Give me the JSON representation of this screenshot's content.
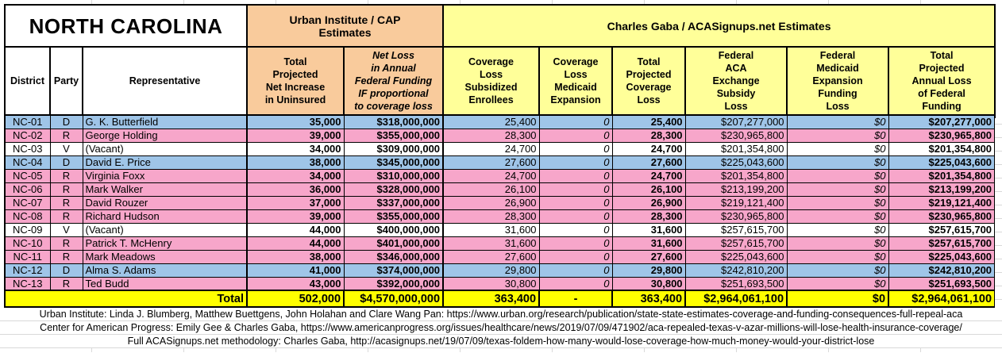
{
  "title": "NORTH CAROLINA",
  "groups": {
    "urban": "Urban Institute / CAP\nEstimates",
    "gaba": "Charles Gaba / ACASignups.net Estimates"
  },
  "columns": [
    "District",
    "Party",
    "Representative",
    "Total\nProjected\nNet Increase\nin Uninsured",
    "Net Loss\nin Annual\nFederal Funding\nIF proportional\nto coverage loss",
    "Coverage\nLoss\nSubsidized\nEnrollees",
    "Coverage\nLoss\nMedicaid\nExpansion",
    "Total\nProjected\nCoverage\nLoss",
    "Federal\nACA\nExchange\nSubsidy\nLoss",
    "Federal\nMedicaid\nExpansion\nFunding\nLoss",
    "Total\nProjected\nAnnual Loss\nof Federal\nFunding"
  ],
  "party_colors": {
    "D": "#9fc5e8",
    "R": "#f7a6ca",
    "V": "#ffffff"
  },
  "section_colors": {
    "urban": "#f9cb9c",
    "gaba": "#ffff99",
    "total_row": "#ffff00"
  },
  "rows": [
    {
      "district": "NC-01",
      "party": "D",
      "representative": "G. K. Butterfield",
      "net_increase_uninsured": "35,000",
      "net_loss_federal_funding": "$318,000,000",
      "coverage_loss_subsidized": "25,400",
      "coverage_loss_medicaid": "0",
      "total_coverage_loss": "25,400",
      "aca_exchange_subsidy_loss": "$207,277,000",
      "medicaid_expansion_funding_loss": "$0",
      "total_annual_federal_loss": "$207,277,000"
    },
    {
      "district": "NC-02",
      "party": "R",
      "representative": "George Holding",
      "net_increase_uninsured": "39,000",
      "net_loss_federal_funding": "$355,000,000",
      "coverage_loss_subsidized": "28,300",
      "coverage_loss_medicaid": "0",
      "total_coverage_loss": "28,300",
      "aca_exchange_subsidy_loss": "$230,965,800",
      "medicaid_expansion_funding_loss": "$0",
      "total_annual_federal_loss": "$230,965,800"
    },
    {
      "district": "NC-03",
      "party": "V",
      "representative": "(Vacant)",
      "net_increase_uninsured": "34,000",
      "net_loss_federal_funding": "$309,000,000",
      "coverage_loss_subsidized": "24,700",
      "coverage_loss_medicaid": "0",
      "total_coverage_loss": "24,700",
      "aca_exchange_subsidy_loss": "$201,354,800",
      "medicaid_expansion_funding_loss": "$0",
      "total_annual_federal_loss": "$201,354,800"
    },
    {
      "district": "NC-04",
      "party": "D",
      "representative": "David E. Price",
      "net_increase_uninsured": "38,000",
      "net_loss_federal_funding": "$345,000,000",
      "coverage_loss_subsidized": "27,600",
      "coverage_loss_medicaid": "0",
      "total_coverage_loss": "27,600",
      "aca_exchange_subsidy_loss": "$225,043,600",
      "medicaid_expansion_funding_loss": "$0",
      "total_annual_federal_loss": "$225,043,600"
    },
    {
      "district": "NC-05",
      "party": "R",
      "representative": "Virginia Foxx",
      "net_increase_uninsured": "34,000",
      "net_loss_federal_funding": "$310,000,000",
      "coverage_loss_subsidized": "24,700",
      "coverage_loss_medicaid": "0",
      "total_coverage_loss": "24,700",
      "aca_exchange_subsidy_loss": "$201,354,800",
      "medicaid_expansion_funding_loss": "$0",
      "total_annual_federal_loss": "$201,354,800"
    },
    {
      "district": "NC-06",
      "party": "R",
      "representative": "Mark Walker",
      "net_increase_uninsured": "36,000",
      "net_loss_federal_funding": "$328,000,000",
      "coverage_loss_subsidized": "26,100",
      "coverage_loss_medicaid": "0",
      "total_coverage_loss": "26,100",
      "aca_exchange_subsidy_loss": "$213,199,200",
      "medicaid_expansion_funding_loss": "$0",
      "total_annual_federal_loss": "$213,199,200"
    },
    {
      "district": "NC-07",
      "party": "R",
      "representative": "David Rouzer",
      "net_increase_uninsured": "37,000",
      "net_loss_federal_funding": "$337,000,000",
      "coverage_loss_subsidized": "26,900",
      "coverage_loss_medicaid": "0",
      "total_coverage_loss": "26,900",
      "aca_exchange_subsidy_loss": "$219,121,400",
      "medicaid_expansion_funding_loss": "$0",
      "total_annual_federal_loss": "$219,121,400"
    },
    {
      "district": "NC-08",
      "party": "R",
      "representative": "Richard Hudson",
      "net_increase_uninsured": "39,000",
      "net_loss_federal_funding": "$355,000,000",
      "coverage_loss_subsidized": "28,300",
      "coverage_loss_medicaid": "0",
      "total_coverage_loss": "28,300",
      "aca_exchange_subsidy_loss": "$230,965,800",
      "medicaid_expansion_funding_loss": "$0",
      "total_annual_federal_loss": "$230,965,800"
    },
    {
      "district": "NC-09",
      "party": "V",
      "representative": "(Vacant)",
      "net_increase_uninsured": "44,000",
      "net_loss_federal_funding": "$400,000,000",
      "coverage_loss_subsidized": "31,600",
      "coverage_loss_medicaid": "0",
      "total_coverage_loss": "31,600",
      "aca_exchange_subsidy_loss": "$257,615,700",
      "medicaid_expansion_funding_loss": "$0",
      "total_annual_federal_loss": "$257,615,700"
    },
    {
      "district": "NC-10",
      "party": "R",
      "representative": "Patrick T. McHenry",
      "net_increase_uninsured": "44,000",
      "net_loss_federal_funding": "$401,000,000",
      "coverage_loss_subsidized": "31,600",
      "coverage_loss_medicaid": "0",
      "total_coverage_loss": "31,600",
      "aca_exchange_subsidy_loss": "$257,615,700",
      "medicaid_expansion_funding_loss": "$0",
      "total_annual_federal_loss": "$257,615,700"
    },
    {
      "district": "NC-11",
      "party": "R",
      "representative": "Mark Meadows",
      "net_increase_uninsured": "38,000",
      "net_loss_federal_funding": "$346,000,000",
      "coverage_loss_subsidized": "27,600",
      "coverage_loss_medicaid": "0",
      "total_coverage_loss": "27,600",
      "aca_exchange_subsidy_loss": "$225,043,600",
      "medicaid_expansion_funding_loss": "$0",
      "total_annual_federal_loss": "$225,043,600"
    },
    {
      "district": "NC-12",
      "party": "D",
      "representative": "Alma S. Adams",
      "net_increase_uninsured": "41,000",
      "net_loss_federal_funding": "$374,000,000",
      "coverage_loss_subsidized": "29,800",
      "coverage_loss_medicaid": "0",
      "total_coverage_loss": "29,800",
      "aca_exchange_subsidy_loss": "$242,810,200",
      "medicaid_expansion_funding_loss": "$0",
      "total_annual_federal_loss": "$242,810,200"
    },
    {
      "district": "NC-13",
      "party": "R",
      "representative": "Ted Budd",
      "net_increase_uninsured": "43,000",
      "net_loss_federal_funding": "$392,000,000",
      "coverage_loss_subsidized": "30,800",
      "coverage_loss_medicaid": "0",
      "total_coverage_loss": "30,800",
      "aca_exchange_subsidy_loss": "$251,693,500",
      "medicaid_expansion_funding_loss": "$0",
      "total_annual_federal_loss": "$251,693,500"
    }
  ],
  "total": {
    "label": "Total",
    "net_increase_uninsured": "502,000",
    "net_loss_federal_funding": "$4,570,000,000",
    "coverage_loss_subsidized": "363,400",
    "coverage_loss_medicaid": "-",
    "total_coverage_loss": "363,400",
    "aca_exchange_subsidy_loss": "$2,964,061,100",
    "medicaid_expansion_funding_loss": "$0",
    "total_annual_federal_loss": "$2,964,061,100"
  },
  "footnotes": [
    "Urban Institute: Linda J. Blumberg, Matthew Buettgens, John Holahan and Clare Wang Pan: https://www.urban.org/research/publication/state-state-estimates-coverage-and-funding-consequences-full-repeal-aca",
    "Center for American Progress: Emily Gee & Charles Gaba, https://www.americanprogress.org/issues/healthcare/news/2019/07/09/471902/aca-repealed-texas-v-azar-millions-will-lose-health-insurance-coverage/",
    "Full ACASignups.net methodology: Charles Gaba, http://acasignups.net/19/07/09/texas-foldem-how-many-would-lose-coverage-how-much-money-would-your-district-lose"
  ]
}
